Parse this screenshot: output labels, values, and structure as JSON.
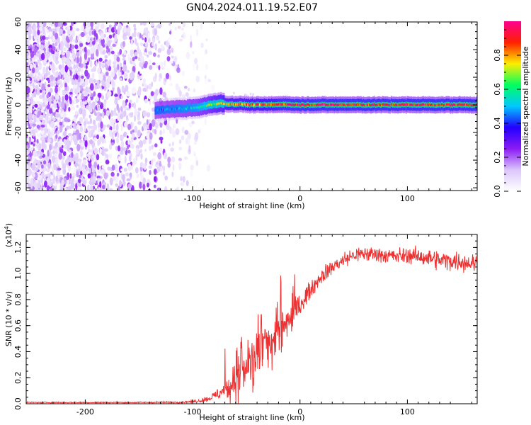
{
  "title": "GN04.2024.011.19.52.E07",
  "chart_data": [
    {
      "type": "heatmap",
      "xlabel": "Height of straight line (km)",
      "ylabel": "Frequency (Hz)",
      "xlim": [
        -255,
        165
      ],
      "ylim": [
        -62,
        60
      ],
      "x_ticks": [
        -200,
        -100,
        0,
        100
      ],
      "y_ticks": [
        -60,
        -40,
        -20,
        0,
        20,
        40,
        60
      ],
      "colorbar": {
        "label": "Normalized spectral amplitude",
        "range": [
          0,
          1
        ],
        "ticks": [
          0.0,
          0.2,
          0.4,
          0.6,
          0.8
        ],
        "tick_labels": [
          "0.0",
          "0.2",
          "0.4",
          "0.6",
          "0.8"
        ],
        "colormap": [
          "#ffffff",
          "#dcc6fb",
          "#8b1bf4",
          "#2200ff",
          "#00c8ff",
          "#00ff60",
          "#ffee00",
          "#ff2000",
          "#ff0090"
        ]
      },
      "regions": [
        {
          "description": "broadband noise",
          "x_range": [
            -255,
            -85
          ],
          "freq_range": [
            -62,
            60
          ],
          "amplitude": [
            0.05,
            0.25
          ]
        },
        {
          "description": "carrier line",
          "x_range": [
            -135,
            165
          ],
          "freq": 0,
          "amplitude": [
            0.4,
            1.0
          ]
        }
      ],
      "line_series": {
        "x": [
          -135,
          -120,
          -105,
          -95,
          -85,
          -75,
          -65,
          -55,
          -45,
          -35,
          -25,
          -15,
          -5,
          0,
          20,
          40,
          60,
          80,
          100,
          120,
          140,
          160,
          165
        ],
        "freq": [
          -4,
          -3,
          -2.5,
          -2,
          0,
          1,
          0.5,
          0.5,
          0,
          0,
          0,
          0.5,
          0,
          0,
          0,
          0,
          0,
          0,
          0,
          0,
          0,
          0,
          0
        ],
        "peak_amplitude": [
          0.45,
          0.5,
          0.55,
          0.6,
          0.7,
          0.8,
          0.85,
          0.85,
          0.9,
          0.9,
          0.95,
          1.0,
          1.0,
          1.0,
          1.0,
          1.0,
          1.0,
          1.0,
          1.0,
          1.0,
          1.0,
          1.0,
          1.0
        ]
      }
    },
    {
      "type": "line",
      "xlabel": "Height of straight line (km)",
      "ylabel": "SNR (10 * v/v)",
      "y_multiplier_label": "(x10",
      "y_multiplier_exp": "4",
      "y_multiplier_close": ")",
      "xlim": [
        -255,
        165
      ],
      "ylim": [
        0,
        1.3
      ],
      "x_ticks": [
        -200,
        -100,
        0,
        100
      ],
      "y_ticks": [
        0.0,
        0.2,
        0.4,
        0.6,
        0.8,
        1.0,
        1.2
      ],
      "y_tick_labels": [
        "0.0",
        "0.2",
        "0.4",
        "0.6",
        "0.8",
        "1.0",
        "1.2"
      ],
      "series": [
        {
          "color": "#ee3030",
          "x": [
            -255,
            -200,
            -150,
            -110,
            -95,
            -85,
            -75,
            -65,
            -55,
            -45,
            -35,
            -25,
            -15,
            -10,
            -5,
            0,
            10,
            20,
            30,
            40,
            50,
            60,
            70,
            80,
            90,
            100,
            110,
            120,
            130,
            140,
            150,
            160,
            165
          ],
          "y": [
            0.01,
            0.01,
            0.01,
            0.012,
            0.02,
            0.04,
            0.08,
            0.14,
            0.22,
            0.32,
            0.42,
            0.52,
            0.6,
            0.65,
            0.7,
            0.76,
            0.88,
            0.98,
            1.05,
            1.1,
            1.14,
            1.15,
            1.15,
            1.14,
            1.13,
            1.14,
            1.13,
            1.12,
            1.1,
            1.1,
            1.09,
            1.08,
            1.08
          ],
          "noise_amplitude": [
            0.004,
            0.004,
            0.004,
            0.006,
            0.01,
            0.02,
            0.04,
            0.08,
            0.12,
            0.15,
            0.15,
            0.14,
            0.12,
            0.1,
            0.09,
            0.07,
            0.05,
            0.05,
            0.05,
            0.05,
            0.05,
            0.05,
            0.05,
            0.05,
            0.05,
            0.05,
            0.05,
            0.06,
            0.06,
            0.06,
            0.06,
            0.06,
            0.06
          ]
        }
      ]
    }
  ]
}
